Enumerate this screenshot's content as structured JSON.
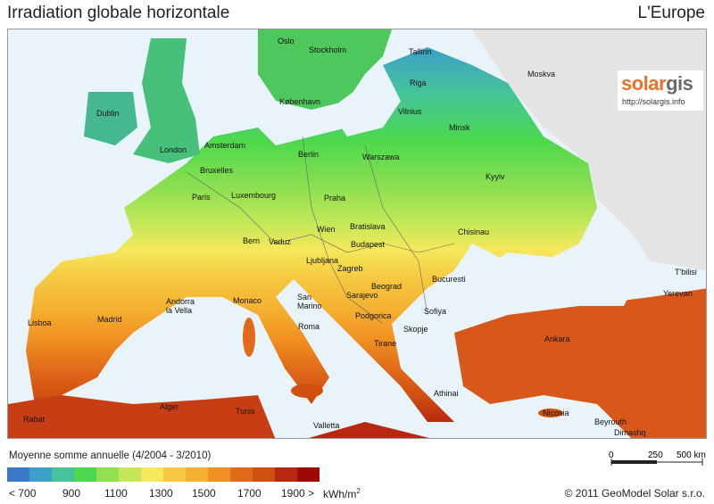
{
  "title_left": "Irradiation globale horizontale",
  "title_right": "L'Europe",
  "logo": {
    "solar": "solar",
    "gis": "gis",
    "url": "http://solargis.info"
  },
  "cities": [
    {
      "name": "Oslo"
    },
    {
      "name": "Stockholm"
    },
    {
      "name": "Tallinn"
    },
    {
      "name": "Moskva"
    },
    {
      "name": "Riga"
    },
    {
      "name": "Dublin"
    },
    {
      "name": "København"
    },
    {
      "name": "Vilnius"
    },
    {
      "name": "Minsk"
    },
    {
      "name": "London"
    },
    {
      "name": "Amsterdam"
    },
    {
      "name": "Berlin"
    },
    {
      "name": "Warszawa"
    },
    {
      "name": "Bruxelles"
    },
    {
      "name": "Paris"
    },
    {
      "name": "Luxembourg"
    },
    {
      "name": "Praha"
    },
    {
      "name": "Kyyiv"
    },
    {
      "name": "Bratislava"
    },
    {
      "name": "Wien"
    },
    {
      "name": "Chisinau"
    },
    {
      "name": "Bern"
    },
    {
      "name": "Vaduz"
    },
    {
      "name": "Budapest"
    },
    {
      "name": "Ljubljana"
    },
    {
      "name": "Zagreb"
    },
    {
      "name": "Bucuresti"
    },
    {
      "name": "T'bilisi"
    },
    {
      "name": "Andorra la Vella"
    },
    {
      "name": "Monaco"
    },
    {
      "name": "San Marino"
    },
    {
      "name": "Sarajevo"
    },
    {
      "name": "Beograd"
    },
    {
      "name": "Sofiya"
    },
    {
      "name": "Yerevan"
    },
    {
      "name": "Lisboa"
    },
    {
      "name": "Madrid"
    },
    {
      "name": "Podgorica"
    },
    {
      "name": "Roma"
    },
    {
      "name": "Skopje"
    },
    {
      "name": "Tirane"
    },
    {
      "name": "Ankara"
    },
    {
      "name": "Athinai"
    },
    {
      "name": "Alger"
    },
    {
      "name": "Tunis"
    },
    {
      "name": "Nicosia"
    },
    {
      "name": "Valletta"
    },
    {
      "name": "Rabat"
    },
    {
      "name": "Beyrouth"
    },
    {
      "name": "Dimashq"
    }
  ],
  "legend": {
    "title": "Moyenne somme annuelle (4/2004 - 3/2010)",
    "colors": [
      "#3a78c8",
      "#3aa0c8",
      "#46c39c",
      "#4cd84c",
      "#90e050",
      "#c4e858",
      "#f5e85a",
      "#f5c840",
      "#f5b030",
      "#f09020",
      "#e06a1a",
      "#d05010",
      "#b82810",
      "#a00800"
    ],
    "labels": [
      "< 700",
      "900",
      "1100",
      "1300",
      "1500",
      "1700",
      "1900 >"
    ],
    "unit": "kWh/m",
    "unit_sup": "2"
  },
  "scale": {
    "labels": [
      "0",
      "250",
      "500 km"
    ]
  },
  "copyright": "© 2011 GeoModel Solar s.r.o."
}
